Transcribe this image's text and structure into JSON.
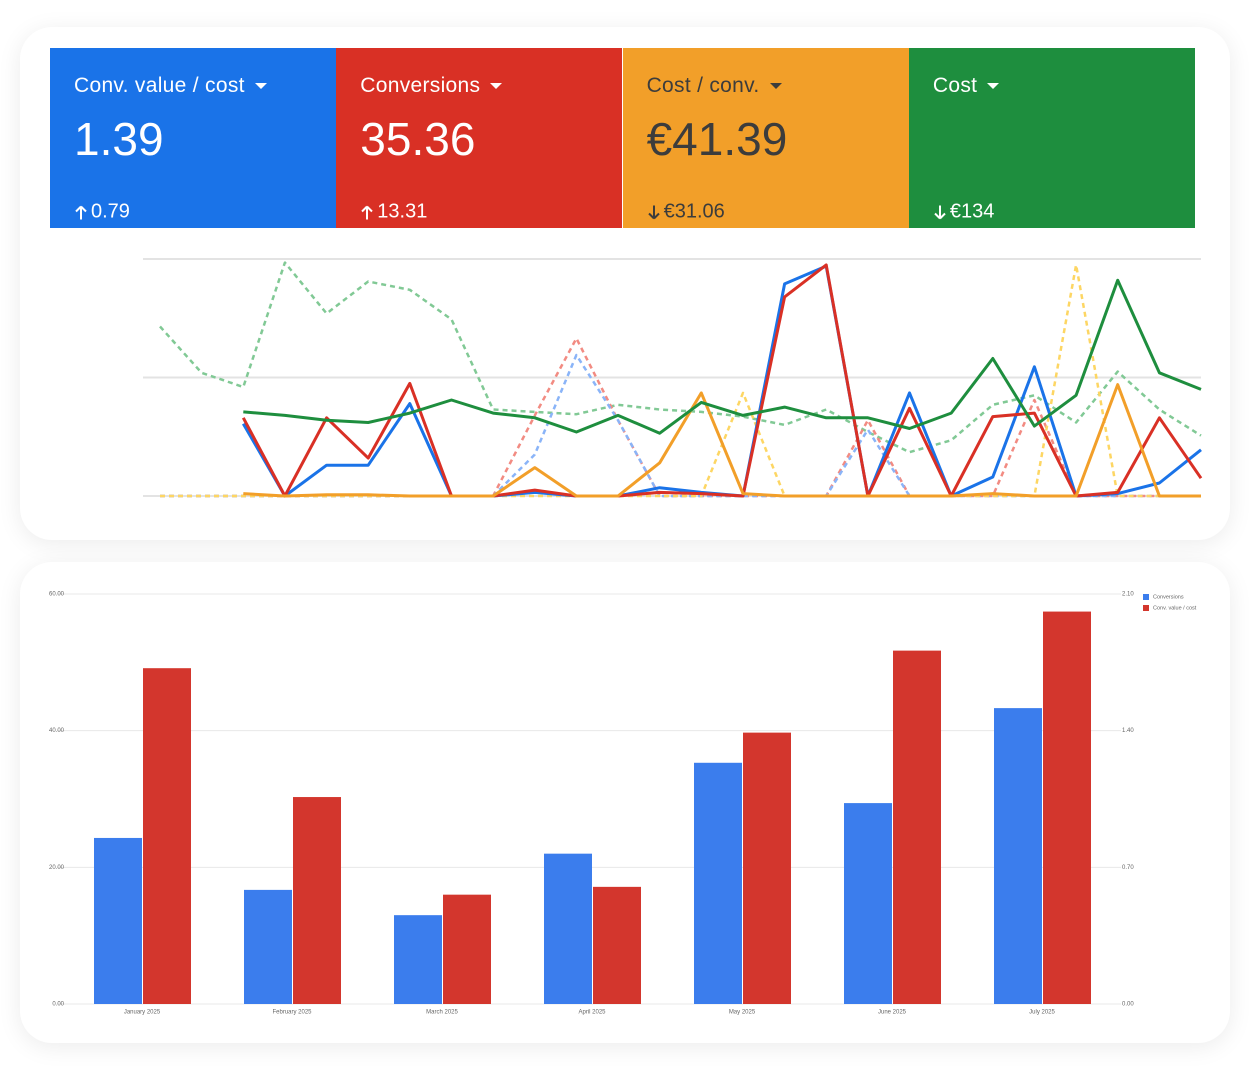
{
  "cards": [
    {
      "label": "Conv. value / cost",
      "value": "1.39",
      "change": "0.79",
      "direction": "up",
      "color": "#1a73e8",
      "text_color": "#ffffff"
    },
    {
      "label": "Conversions",
      "value": "35.36",
      "change": "13.31",
      "direction": "up",
      "color": "#d93025",
      "text_color": "#ffffff"
    },
    {
      "label": "Cost / conv.",
      "value": "€41.39",
      "change": "€31.06",
      "direction": "down",
      "color": "#f29f29",
      "text_color": "#3c3c3c"
    },
    {
      "label": "Cost",
      "change": "€134",
      "direction": "down",
      "color": "#1e8e3e",
      "text_color": "#ffffff"
    }
  ],
  "chart_data": [
    {
      "type": "line",
      "categories": [
        null,
        null,
        null,
        null,
        null,
        null,
        null,
        null,
        null,
        null,
        null,
        null,
        null,
        null,
        null,
        null,
        null,
        null,
        null,
        null,
        null,
        null,
        null,
        null,
        null,
        null
      ],
      "ylim": [
        0,
        2
      ],
      "yticks": [
        0,
        1,
        2
      ],
      "grid": true,
      "series": [
        {
          "color": "#81c995",
          "dash": true,
          "values": [
            1.43,
            1.04,
            0.92,
            1.97,
            1.54,
            1.81,
            1.74,
            1.49,
            0.73,
            0.71,
            0.69,
            0.77,
            0.73,
            0.71,
            0.67,
            0.6,
            0.73,
            0.54,
            0.37,
            0.47,
            0.77,
            0.85,
            0.62,
            1.05,
            0.73,
            0.51
          ]
        },
        {
          "color": "#f28b82",
          "dash": true,
          "values": [
            0,
            0,
            0,
            0,
            0,
            0,
            0,
            0,
            0,
            0.68,
            1.33,
            0.64,
            0,
            0,
            0,
            0,
            0,
            0.64,
            0,
            0,
            0,
            0.81,
            0,
            0,
            0,
            0
          ]
        },
        {
          "color": "#8ab4f8",
          "dash": true,
          "values": [
            0,
            0,
            0,
            0,
            0,
            0,
            0,
            0,
            0,
            0.35,
            1.19,
            0.64,
            0,
            0,
            0,
            0,
            0,
            0.56,
            0,
            0,
            0,
            0,
            0,
            0,
            0,
            0
          ]
        },
        {
          "color": "#fdd663",
          "dash": true,
          "values": [
            0,
            0,
            0,
            0,
            0,
            0,
            0,
            0,
            0,
            0,
            0,
            0,
            0,
            0,
            0.87,
            0,
            0,
            0,
            0,
            0,
            0,
            0,
            1.95,
            0,
            0,
            0
          ]
        },
        {
          "color": "#1a73e8",
          "dash": false,
          "values": [
            null,
            null,
            0.61,
            0,
            0.26,
            0.26,
            0.78,
            0,
            0,
            0.03,
            0,
            0,
            0.07,
            0.03,
            0,
            1.79,
            1.94,
            0,
            0.87,
            0,
            0.16,
            1.09,
            0,
            0.02,
            0.11,
            0.39
          ]
        },
        {
          "color": "#d93025",
          "dash": false,
          "values": [
            null,
            null,
            0.66,
            0,
            0.66,
            0.32,
            0.95,
            0,
            0,
            0.05,
            0,
            0,
            0.03,
            0.02,
            0,
            1.68,
            1.95,
            0,
            0.74,
            0,
            0.67,
            0.7,
            0,
            0.03,
            0.66,
            0.15
          ]
        },
        {
          "color": "#f29f29",
          "dash": false,
          "values": [
            null,
            null,
            0.02,
            0,
            0.01,
            0.01,
            0,
            0,
            0,
            0.24,
            0,
            0,
            0.28,
            0.87,
            0.02,
            0,
            0,
            0,
            0,
            0,
            0.02,
            0,
            0,
            0.94,
            0,
            0
          ]
        },
        {
          "color": "#1e8e3e",
          "dash": false,
          "values": [
            null,
            null,
            0.71,
            0.68,
            0.64,
            0.62,
            0.7,
            0.81,
            0.7,
            0.66,
            0.54,
            0.68,
            0.53,
            0.79,
            0.68,
            0.75,
            0.66,
            0.66,
            0.57,
            0.7,
            1.16,
            0.59,
            0.85,
            1.82,
            1.04,
            0.9
          ]
        }
      ]
    },
    {
      "type": "bar",
      "categories": [
        "January 2025",
        "February 2025",
        "March 2025",
        "April 2025",
        "May 2025",
        "June 2025",
        "July 2025"
      ],
      "ylim": [
        0,
        60
      ],
      "yticks": [
        {
          "value": 0,
          "label": "0.00"
        },
        {
          "value": 20,
          "label": "20.00"
        },
        {
          "value": 40,
          "label": "40.00"
        },
        {
          "value": 60,
          "label": "60.00"
        }
      ],
      "y2lim": [
        0,
        2.1
      ],
      "y2ticks": [
        {
          "value": 0,
          "label": "0.00"
        },
        {
          "value": 0.7,
          "label": "0.70"
        },
        {
          "value": 1.4,
          "label": "1.40"
        },
        {
          "value": 2.1,
          "label": "2.10"
        }
      ],
      "grid": true,
      "legend": "top-right",
      "series": [
        {
          "name": "Conversions",
          "color": "#3b7ded",
          "values": [
            24.3,
            16.7,
            13.0,
            22.0,
            35.3,
            29.4,
            43.3
          ]
        },
        {
          "name": "Conv. value / cost",
          "color": "#d3362d",
          "axis": "y2",
          "values": [
            1.72,
            1.06,
            0.56,
            0.6,
            1.39,
            1.81,
            2.01
          ]
        }
      ]
    }
  ]
}
